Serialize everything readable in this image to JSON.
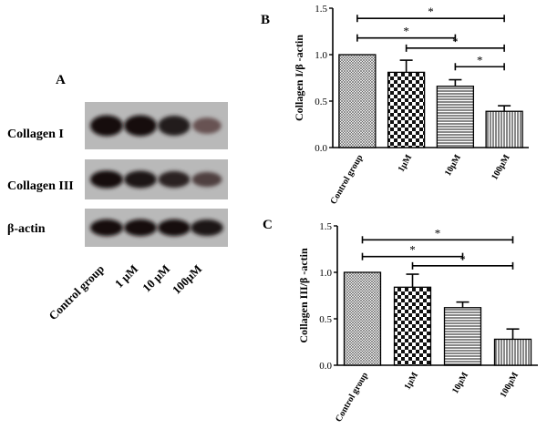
{
  "panels": {
    "a": "A",
    "b": "B",
    "c": "C"
  },
  "blot": {
    "rows": [
      "Collagen I",
      "Collagen III",
      "β-actin"
    ],
    "lanes": [
      "Control group",
      "1 μM",
      "10 μM",
      "100μM"
    ],
    "intensity": [
      [
        1.0,
        1.0,
        0.9,
        0.45
      ],
      [
        1.0,
        0.95,
        0.85,
        0.6
      ],
      [
        1.0,
        1.0,
        1.0,
        0.95
      ]
    ]
  },
  "chart_data": [
    {
      "type": "bar",
      "title": "",
      "categories": [
        "Control group",
        "1μM",
        "10μM",
        "100μM"
      ],
      "values": [
        1.0,
        0.81,
        0.66,
        0.39
      ],
      "errors": [
        0.0,
        0.13,
        0.07,
        0.06
      ],
      "patterns": [
        "cross",
        "checker",
        "horizontal",
        "vertical"
      ],
      "xlabel": "",
      "ylabel": "Collagen I/β -actin",
      "ylim": [
        0,
        1.5
      ],
      "yticks": [
        "0.0",
        "0.5",
        "1.0",
        "1.5"
      ],
      "significance": [
        {
          "from": 0,
          "to": 3,
          "y": 1.39,
          "label": "*"
        },
        {
          "from": 0,
          "to": 2,
          "y": 1.18,
          "label": "*"
        },
        {
          "from": 1,
          "to": 3,
          "y": 1.07,
          "label": "*"
        },
        {
          "from": 2,
          "to": 3,
          "y": 0.87,
          "label": "*"
        }
      ]
    },
    {
      "type": "bar",
      "title": "",
      "categories": [
        "Control group",
        "1μM",
        "10μM",
        "100μM"
      ],
      "values": [
        1.0,
        0.84,
        0.62,
        0.28
      ],
      "errors": [
        0.0,
        0.14,
        0.06,
        0.11
      ],
      "patterns": [
        "cross",
        "checker",
        "horizontal",
        "vertical"
      ],
      "xlabel": "",
      "ylabel": "Collagen III/β -actin",
      "ylim": [
        0,
        1.5
      ],
      "yticks": [
        "0.0",
        "0.5",
        "1.0",
        "1.5"
      ],
      "significance": [
        {
          "from": 0,
          "to": 3,
          "y": 1.35,
          "label": "*"
        },
        {
          "from": 0,
          "to": 2,
          "y": 1.17,
          "label": "*"
        },
        {
          "from": 1,
          "to": 3,
          "y": 1.07,
          "label": "*"
        }
      ]
    }
  ]
}
